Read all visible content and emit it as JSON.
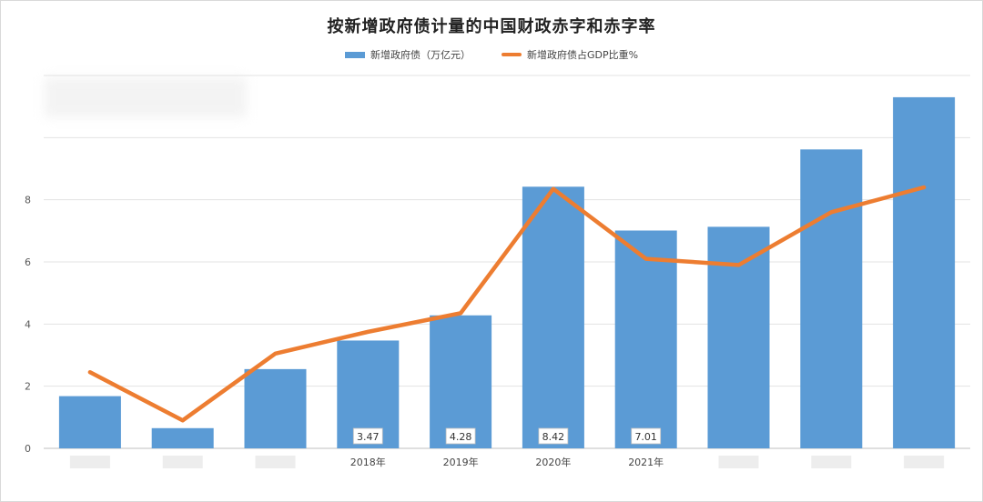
{
  "chart_data": {
    "type": "bar",
    "title": "按新增政府债计量的中国财政赤字和赤字率",
    "categories": [
      "",
      "",
      "",
      "2018年",
      "2019年",
      "2020年",
      "2021年",
      "",
      "",
      ""
    ],
    "series": [
      {
        "name": "新增政府债（万亿元）",
        "type": "bar",
        "color": "#5b9bd5",
        "values": [
          1.68,
          0.65,
          2.55,
          3.47,
          4.28,
          8.42,
          7.01,
          7.13,
          9.62,
          11.3
        ]
      },
      {
        "name": "新增政府债占GDP比重%",
        "type": "line",
        "color": "#ed7d31",
        "values": [
          2.45,
          0.9,
          3.05,
          3.75,
          4.35,
          8.35,
          6.1,
          5.9,
          7.6,
          8.4
        ]
      }
    ],
    "data_labels": [
      "",
      "",
      "",
      "3.47",
      "4.28",
      "8.42",
      "7.01",
      "",
      "",
      ""
    ],
    "y_ticks": [
      "0",
      "2",
      "4",
      "6",
      "8"
    ],
    "ylim": [
      0,
      12
    ],
    "grid": true,
    "legend_position": "top"
  }
}
